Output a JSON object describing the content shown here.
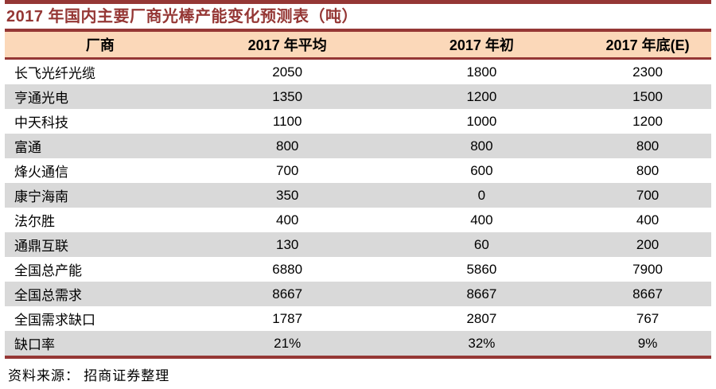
{
  "title": "2017 年国内主要厂商光棒产能变化预测表（吨）",
  "source_note": "资料来源： 招商证券整理",
  "colors": {
    "accent_dark_red": "#953735",
    "header_bg": "#FBD8B9",
    "row_alt_bg": "#D9D9D9",
    "text": "#000000"
  },
  "table": {
    "columns": [
      "厂商",
      "2017 年平均",
      "2017 年初",
      "2017 年底(E)"
    ],
    "rows": [
      [
        "长飞光纤光缆",
        "2050",
        "1800",
        "2300"
      ],
      [
        "亨通光电",
        "1350",
        "1200",
        "1500"
      ],
      [
        "中天科技",
        "1100",
        "1000",
        "1200"
      ],
      [
        "富通",
        "800",
        "800",
        "800"
      ],
      [
        "烽火通信",
        "700",
        "600",
        "800"
      ],
      [
        "康宁海南",
        "350",
        "0",
        "700"
      ],
      [
        "法尔胜",
        "400",
        "400",
        "400"
      ],
      [
        "通鼎互联",
        "130",
        "60",
        "200"
      ],
      [
        "全国总产能",
        "6880",
        "5860",
        "7900"
      ],
      [
        "全国总需求",
        "8667",
        "8667",
        "8667"
      ],
      [
        "全国需求缺口",
        "1787",
        "2807",
        "767"
      ],
      [
        "缺口率",
        "21%",
        "32%",
        "9%"
      ]
    ]
  }
}
